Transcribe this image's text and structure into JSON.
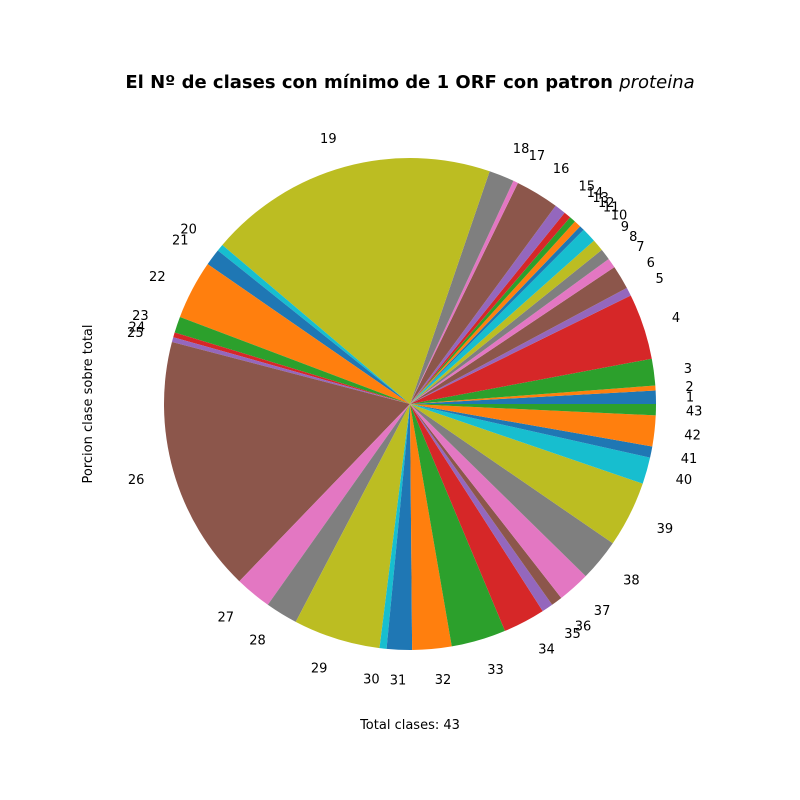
{
  "chart_data": {
    "type": "pie",
    "title": "El Nº de clases con mínimo de 1 ORF con patron",
    "title_italic": "proteina",
    "ylabel": "Porcion clase sobre total",
    "xlabel": "Total clases: 43",
    "start_angle_deg": 0,
    "direction": "counterclockwise",
    "categories": [
      "1",
      "2",
      "3",
      "4",
      "5",
      "6",
      "7",
      "8",
      "9",
      "10",
      "11",
      "12",
      "13",
      "14",
      "15",
      "16",
      "17",
      "18",
      "19",
      "20",
      "21",
      "22",
      "23",
      "24",
      "25",
      "26",
      "27",
      "28",
      "29",
      "30",
      "31",
      "32",
      "33",
      "34",
      "35",
      "36",
      "37",
      "38",
      "39",
      "40",
      "41",
      "42",
      "43"
    ],
    "values": [
      0.95,
      0.35,
      1.9,
      4.7,
      0.6,
      1.7,
      0.7,
      0.8,
      0.85,
      1.05,
      0.35,
      0.5,
      0.45,
      0.5,
      0.8,
      3.1,
      0.35,
      1.8,
      20.7,
      0.5,
      1.2,
      4.2,
      1.15,
      0.35,
      0.35,
      18.3,
      2.6,
      2.3,
      6.2,
      0.5,
      1.8,
      2.8,
      3.9,
      3.0,
      0.8,
      0.8,
      2.3,
      3.0,
      4.7,
      1.9,
      0.8,
      2.2,
      0.8
    ],
    "colors": [
      "#1f77b4",
      "#ff7f0e",
      "#2ca02c",
      "#d62728",
      "#9467bd",
      "#8c564b",
      "#e377c2",
      "#7f7f7f",
      "#bcbd22",
      "#17becf"
    ]
  }
}
